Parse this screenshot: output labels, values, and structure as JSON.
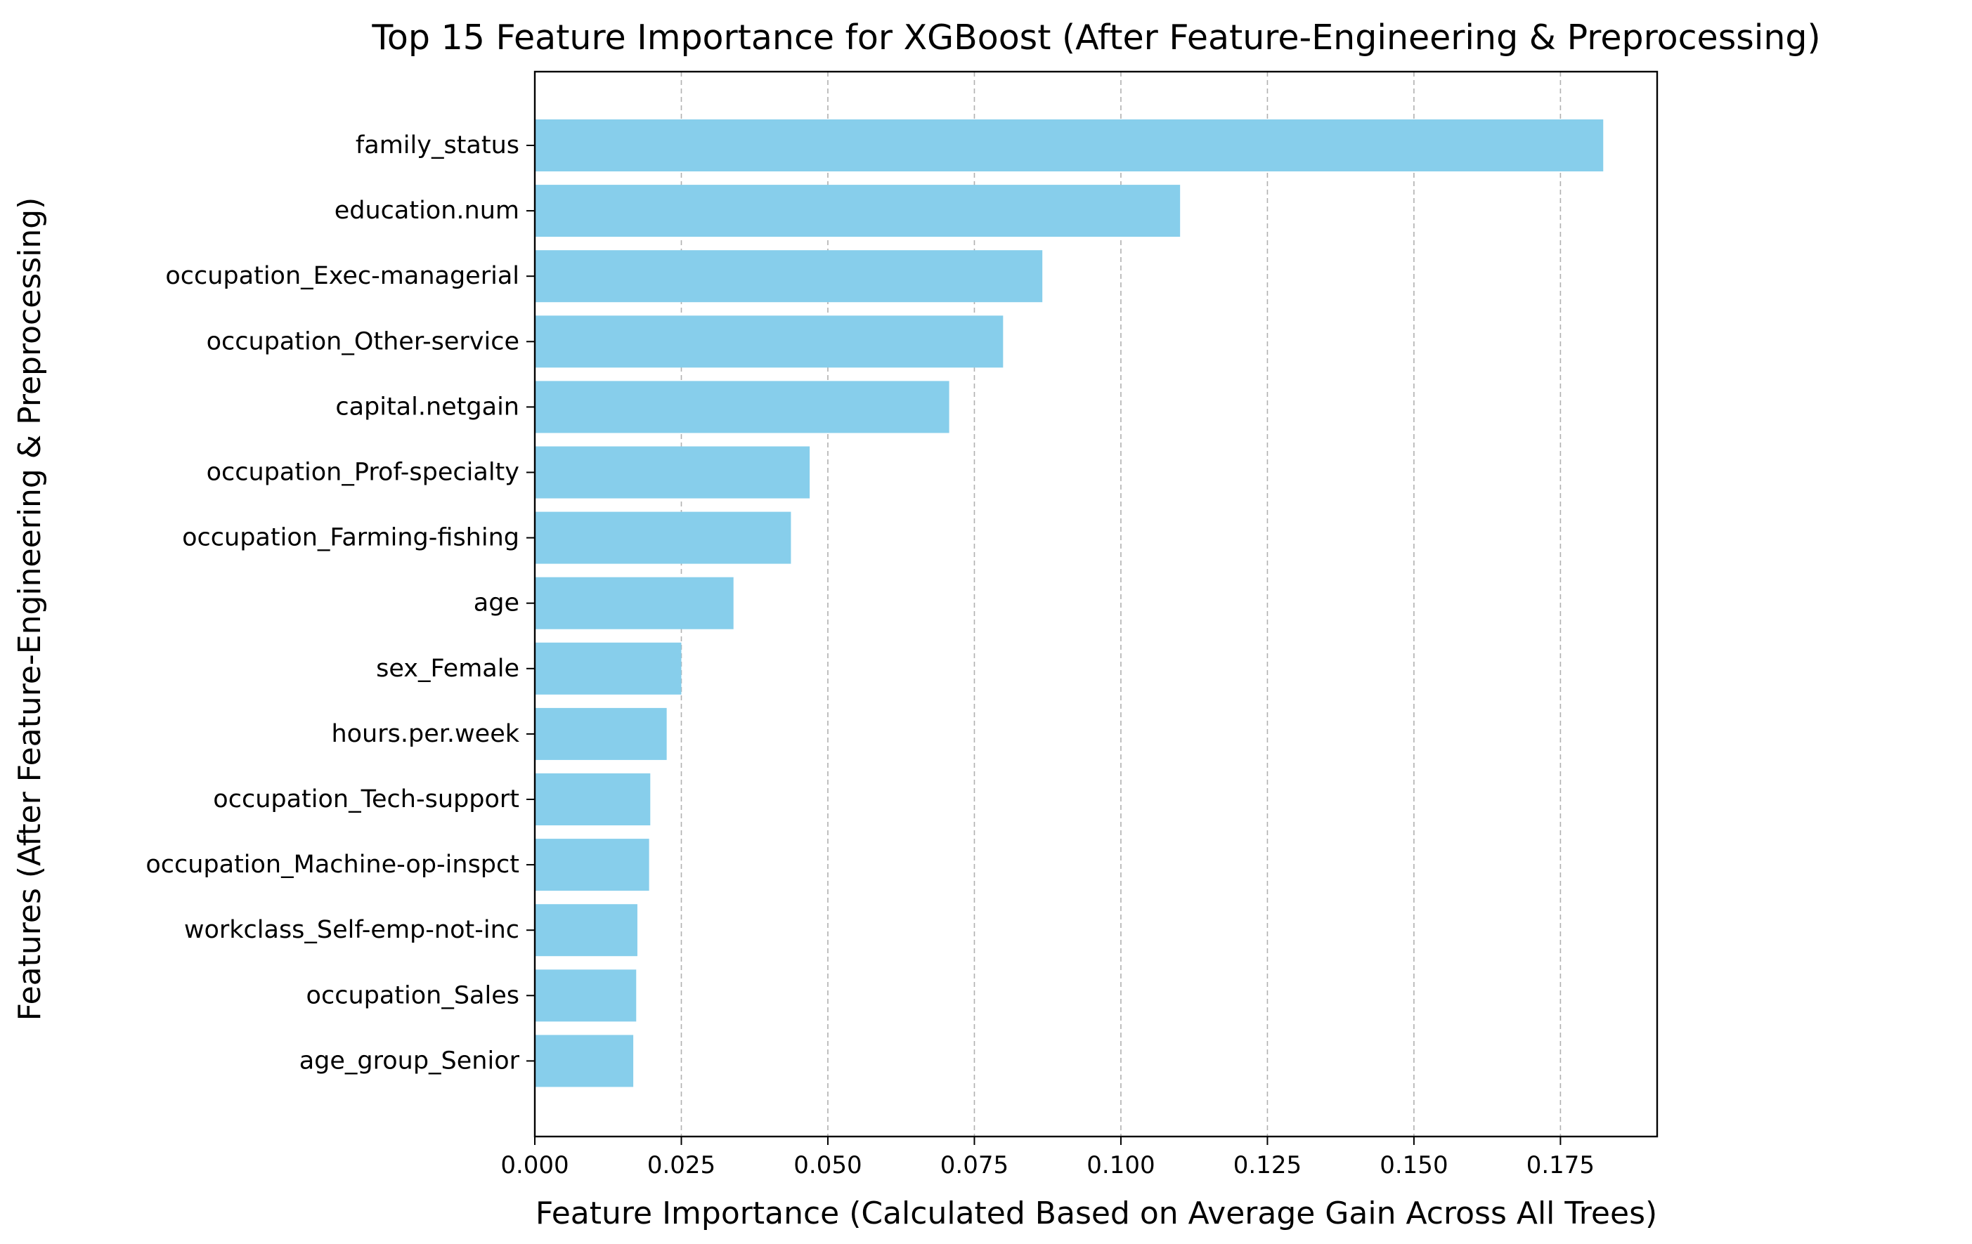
{
  "chart_data": {
    "type": "bar",
    "orientation": "horizontal",
    "title": "Top 15 Feature Importance for XGBoost (After Feature-Engineering & Preprocessing)",
    "xlabel": "Feature Importance (Calculated Based on Average Gain Across All Trees)",
    "ylabel": "Features (After Feature-Engineering & Preprocessing)",
    "categories": [
      "family_status",
      "education.num",
      "occupation_Exec-managerial",
      "occupation_Other-service",
      "capital.netgain",
      "occupation_Prof-specialty",
      "occupation_Farming-fishing",
      "age",
      "sex_Female",
      "hours.per.week",
      "occupation_Tech-support",
      "occupation_Machine-op-inspct",
      "workclass_Self-emp-not-inc",
      "occupation_Sales",
      "age_group_Senior"
    ],
    "values": [
      0.1823,
      0.1101,
      0.0866,
      0.0799,
      0.0707,
      0.0469,
      0.0437,
      0.0339,
      0.025,
      0.0225,
      0.0197,
      0.0195,
      0.0175,
      0.0173,
      0.0168
    ],
    "xlim": [
      0,
      0.1915
    ],
    "xticks": [
      "0.000",
      "0.025",
      "0.050",
      "0.075",
      "0.100",
      "0.125",
      "0.150",
      "0.175"
    ],
    "xtick_values": [
      0,
      0.025,
      0.05,
      0.075,
      0.1,
      0.125,
      0.15,
      0.175
    ],
    "grid": "x-dashed",
    "bar_color": "#87ceeb"
  }
}
